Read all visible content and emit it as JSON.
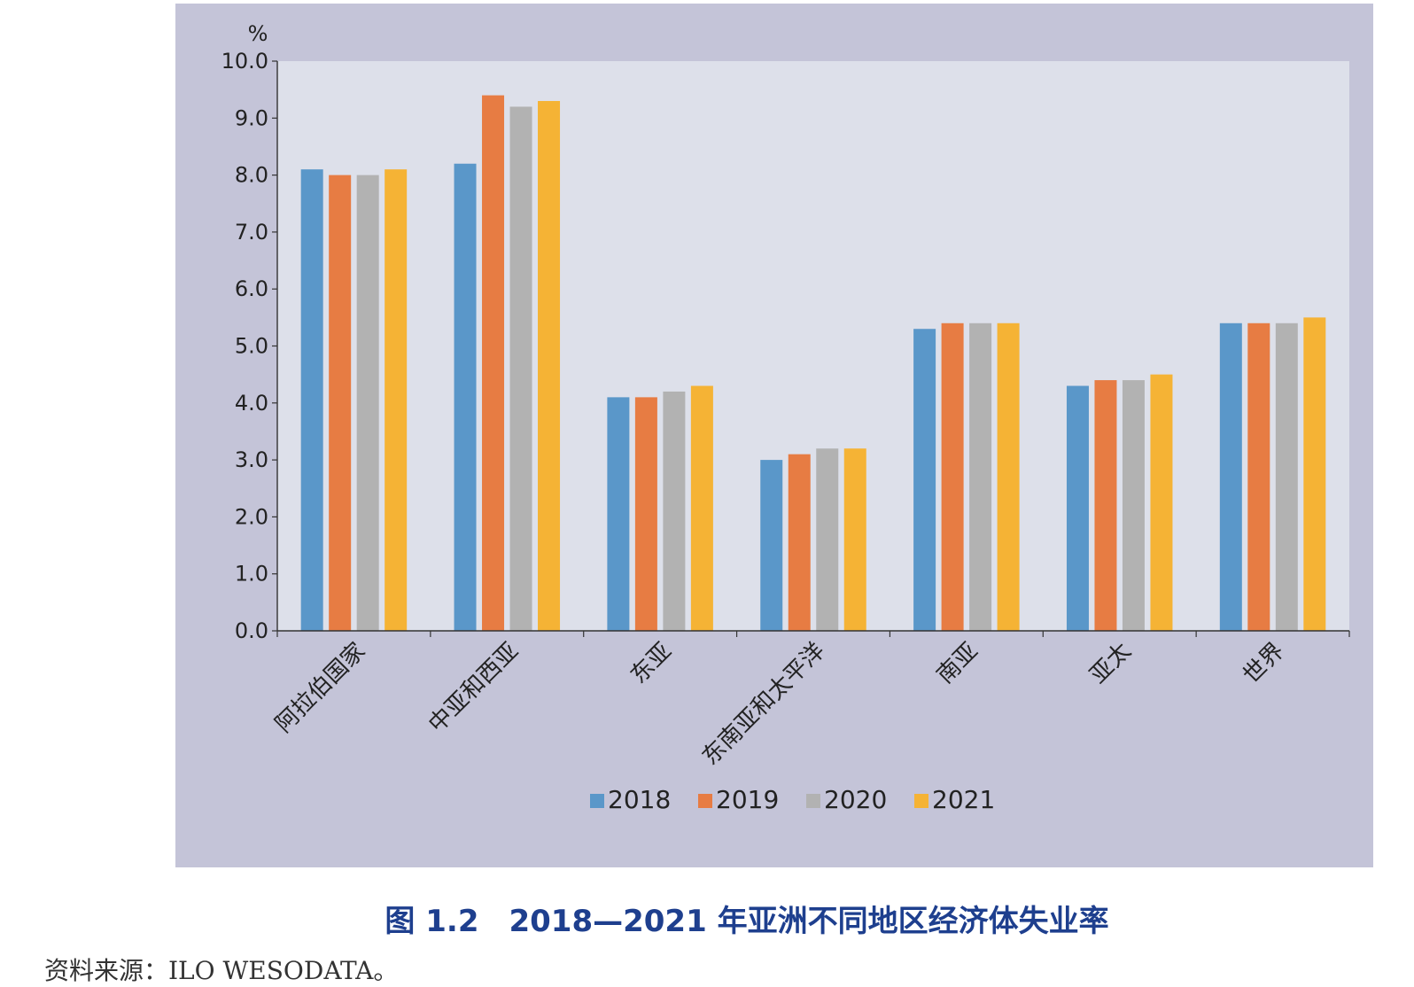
{
  "caption": "图 1.2　2018—2021 年亚洲不同地区经济体失业率",
  "source": "资料来源：ILO WESODATA。",
  "chart_data": {
    "type": "bar",
    "unit": "%",
    "categories": [
      "阿拉伯国家",
      "中亚和西亚",
      "东亚",
      "东南亚和太平洋",
      "南亚",
      "亚太",
      "世界"
    ],
    "series": [
      {
        "name": "2018",
        "color": "#5a97c9",
        "values": [
          8.1,
          8.2,
          4.1,
          3.0,
          5.3,
          4.3,
          5.4
        ]
      },
      {
        "name": "2019",
        "color": "#e77c43",
        "values": [
          8.0,
          9.4,
          4.1,
          3.1,
          5.4,
          4.4,
          5.4
        ]
      },
      {
        "name": "2020",
        "color": "#b2b2b2",
        "values": [
          8.0,
          9.2,
          4.2,
          3.2,
          5.4,
          4.4,
          5.4
        ]
      },
      {
        "name": "2021",
        "color": "#f5b335",
        "values": [
          8.1,
          9.3,
          4.3,
          3.2,
          5.4,
          4.5,
          5.5
        ]
      }
    ],
    "yticks": [
      "0.0",
      "1.0",
      "2.0",
      "3.0",
      "4.0",
      "5.0",
      "6.0",
      "7.0",
      "8.0",
      "9.0",
      "10.0"
    ],
    "ylim": [
      0,
      10
    ],
    "grid": false,
    "legend_position": "bottom"
  }
}
